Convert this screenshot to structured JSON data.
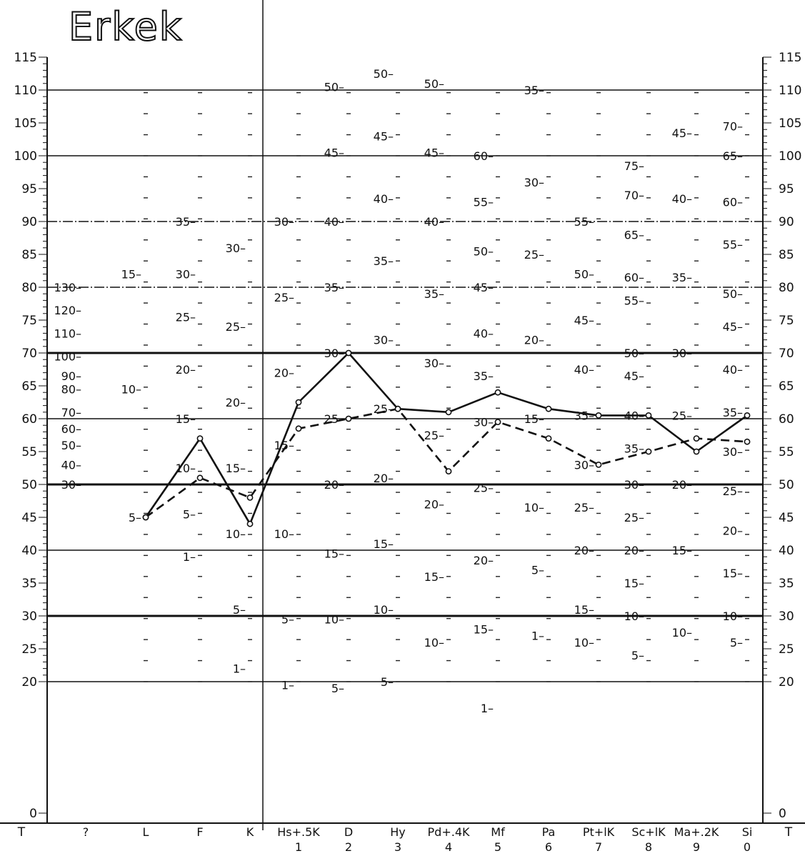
{
  "title": "Erkek",
  "chart_data": {
    "type": "line",
    "title": "Erkek",
    "ylabel": "T",
    "ylim": [
      0,
      115
    ],
    "y_ticks": [
      0,
      20,
      25,
      30,
      35,
      40,
      45,
      50,
      55,
      60,
      65,
      70,
      75,
      80,
      85,
      90,
      95,
      100,
      105,
      110,
      115
    ],
    "y_ticks_left_text": [
      "0",
      "20",
      "25",
      "30",
      "35",
      "40",
      "45",
      "50",
      "55",
      "60",
      "65",
      "70",
      "75",
      "80",
      "85",
      "90",
      "95",
      "100",
      "105",
      "110",
      "115"
    ],
    "y_ticks_right_text": [
      "0",
      "20",
      "25",
      "30",
      "35",
      "40",
      "45",
      "50",
      "55",
      "60",
      "65",
      "70",
      "75",
      "80",
      "85",
      "90",
      "95",
      "100",
      "105",
      "110",
      "115"
    ],
    "y_axis_right_label": "T",
    "categories": [
      "?",
      "L",
      "F",
      "K",
      "Hs+.5K",
      "D",
      "Hy",
      "Pd+.4K",
      "Mf",
      "Pa",
      "Pt+lK",
      "Sc+lK",
      "Ma+.2K",
      "Si"
    ],
    "category_numbers": [
      "",
      "",
      "",
      "",
      "1",
      "2",
      "3",
      "4",
      "5",
      "6",
      "7",
      "8",
      "9",
      "0"
    ],
    "series": [
      {
        "name": "",
        "style": "solid",
        "values": [
          null,
          45,
          57,
          44,
          62.5,
          70,
          61.5,
          61,
          64,
          61.5,
          60.5,
          60.5,
          55,
          60.5
        ]
      },
      {
        "name": "",
        "style": "dashed",
        "values": [
          null,
          45,
          51,
          48,
          58.5,
          60,
          61.5,
          52,
          59.5,
          57,
          53,
          55,
          57,
          56.5
        ]
      }
    ],
    "scale_labels": [
      {
        "col": 0,
        "items": [
          [
            "130",
            80
          ],
          [
            "120",
            76.5
          ],
          [
            "110",
            73
          ],
          [
            "100",
            69.5
          ],
          [
            "90",
            66.5
          ],
          [
            "80",
            64.5
          ],
          [
            "70",
            61
          ],
          [
            "60",
            58.5
          ],
          [
            "50",
            56
          ],
          [
            "40",
            53
          ],
          [
            "30",
            50
          ]
        ]
      },
      {
        "col": 1,
        "items": [
          [
            "15",
            82
          ],
          [
            "10",
            64.5
          ],
          [
            "5",
            45
          ]
        ]
      },
      {
        "col": 2,
        "items": [
          [
            "35",
            90
          ],
          [
            "30",
            82
          ],
          [
            "25",
            75.5
          ],
          [
            "20",
            67.5
          ],
          [
            "15",
            60
          ],
          [
            "10",
            52.5
          ],
          [
            "5",
            45.5
          ],
          [
            "1",
            39
          ]
        ]
      },
      {
        "col": 3,
        "items": [
          [
            "30",
            86
          ],
          [
            "25",
            74
          ],
          [
            "20",
            62.5
          ],
          [
            "15",
            52.5
          ],
          [
            "10",
            42.5
          ],
          [
            "5",
            31
          ],
          [
            "1",
            22
          ]
        ]
      },
      {
        "col": 4,
        "items": [
          [
            "30",
            90
          ],
          [
            "25",
            78.5
          ],
          [
            "20",
            67
          ],
          [
            "15",
            56
          ],
          [
            "10",
            42.5
          ],
          [
            "5",
            29.5
          ],
          [
            "1",
            19.5
          ]
        ]
      },
      {
        "col": 5,
        "items": [
          [
            "50",
            110.5
          ],
          [
            "45",
            100.5
          ],
          [
            "40",
            90
          ],
          [
            "35",
            80
          ],
          [
            "30",
            70
          ],
          [
            "25",
            60
          ],
          [
            "20",
            50
          ],
          [
            "15",
            39.5
          ],
          [
            "10",
            29.5
          ],
          [
            "5",
            19
          ]
        ]
      },
      {
        "col": 6,
        "items": [
          [
            "50",
            112.5
          ],
          [
            "45",
            103
          ],
          [
            "40",
            93.5
          ],
          [
            "35",
            84
          ],
          [
            "30",
            72
          ],
          [
            "25",
            61.5
          ],
          [
            "20",
            51
          ],
          [
            "15",
            41
          ],
          [
            "10",
            31
          ],
          [
            "5",
            20
          ]
        ]
      },
      {
        "col": 7,
        "items": [
          [
            "50",
            111
          ],
          [
            "45",
            100.5
          ],
          [
            "40",
            90
          ],
          [
            "35",
            79
          ],
          [
            "30",
            68.5
          ],
          [
            "25",
            57.5
          ],
          [
            "20",
            47
          ],
          [
            "15",
            36
          ],
          [
            "10",
            26
          ]
        ]
      },
      {
        "col": 8,
        "items": [
          [
            "60",
            100
          ],
          [
            "55",
            93
          ],
          [
            "50",
            85.5
          ],
          [
            "45",
            80
          ],
          [
            "40",
            73
          ],
          [
            "35",
            66.5
          ],
          [
            "30",
            59.5
          ],
          [
            "25",
            49.5
          ],
          [
            "20",
            38.5
          ],
          [
            "15",
            28
          ],
          [
            "1",
            16
          ]
        ]
      },
      {
        "col": 9,
        "items": [
          [
            "35",
            110
          ],
          [
            "30",
            96
          ],
          [
            "25",
            85
          ],
          [
            "20",
            72
          ],
          [
            "15",
            60
          ],
          [
            "10",
            46.5
          ],
          [
            "5",
            37
          ],
          [
            "1",
            27
          ]
        ]
      },
      {
        "col": 10,
        "items": [
          [
            "55",
            90
          ],
          [
            "50",
            82
          ],
          [
            "45",
            75
          ],
          [
            "40",
            67.5
          ],
          [
            "35",
            60.5
          ],
          [
            "30",
            53
          ],
          [
            "25",
            46.5
          ],
          [
            "20",
            40
          ],
          [
            "15",
            31
          ],
          [
            "10",
            26
          ]
        ]
      },
      {
        "col": 11,
        "items": [
          [
            "75",
            98.5
          ],
          [
            "70",
            94
          ],
          [
            "65",
            88
          ],
          [
            "60",
            81.5
          ],
          [
            "55",
            78
          ],
          [
            "50",
            70
          ],
          [
            "45",
            66.5
          ],
          [
            "40",
            60.5
          ],
          [
            "35",
            55.5
          ],
          [
            "30",
            50
          ],
          [
            "25",
            45
          ],
          [
            "20",
            40
          ],
          [
            "15",
            35
          ],
          [
            "10",
            30
          ],
          [
            "5",
            24
          ]
        ]
      },
      {
        "col": 12,
        "items": [
          [
            "45",
            103.5
          ],
          [
            "40",
            93.5
          ],
          [
            "35",
            81.5
          ],
          [
            "30",
            70
          ],
          [
            "25",
            60.5
          ],
          [
            "20",
            50
          ],
          [
            "15",
            40
          ],
          [
            "10",
            27.5
          ]
        ]
      },
      {
        "col": 13,
        "items": [
          [
            "70",
            104.5
          ],
          [
            "65",
            100
          ],
          [
            "60",
            93
          ],
          [
            "55",
            86.5
          ],
          [
            "50",
            79
          ],
          [
            "45",
            74
          ],
          [
            "40",
            67.5
          ],
          [
            "35",
            61
          ],
          [
            "30",
            55
          ],
          [
            "25",
            49
          ],
          [
            "20",
            43
          ],
          [
            "15",
            36.5
          ],
          [
            "10",
            30
          ],
          [
            "5",
            26
          ]
        ]
      }
    ],
    "grid": true,
    "thick_gridlines": [
      30,
      50,
      70
    ],
    "medium_gridlines": [
      20,
      40,
      60,
      80,
      90,
      100,
      110
    ]
  }
}
